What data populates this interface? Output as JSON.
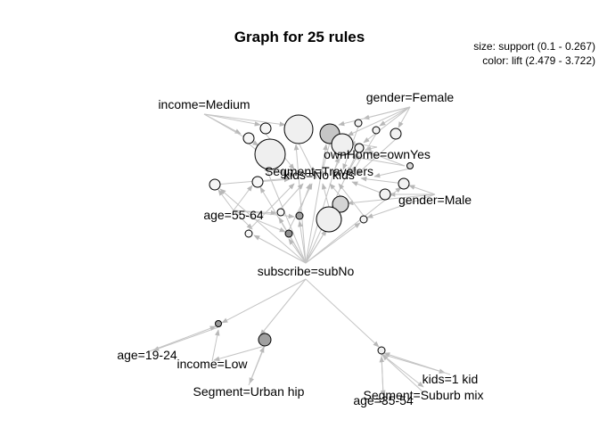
{
  "title": "Graph for 25 rules",
  "legend": {
    "size": "size: support (0.1 - 0.267)",
    "color": "color: lift (2.479 - 3.722)"
  },
  "items": [
    "income=Medium",
    "gender=Female",
    "ownHome=ownYes",
    "Segment=Travelers",
    "kids=No kids",
    "gender=Male",
    "age=55-64",
    "subscribe=subNo",
    "age=19-24",
    "income=Low",
    "Segment=Urban hip",
    "kids=1 kid",
    "Segment=Suburb mix",
    "age=35-54"
  ],
  "colors": {
    "edge": "#c4c4c4",
    "lift_low": "#f4f4f4",
    "lift_high": "#8c8c8c",
    "node_stroke": "#000000"
  }
}
